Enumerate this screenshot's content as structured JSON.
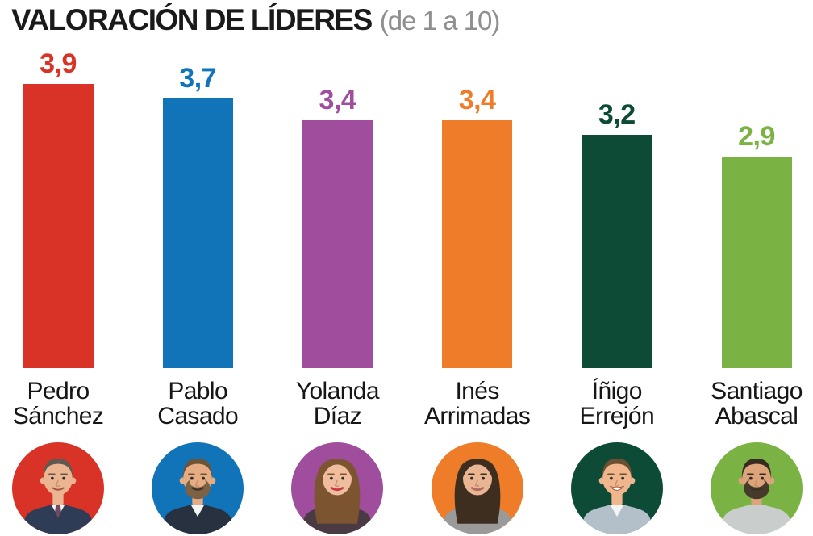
{
  "title": {
    "main": "VALORACIÓN DE LÍDERES",
    "sub": "(de 1 a 10)"
  },
  "chart_data": {
    "type": "bar",
    "title": "VALORACIÓN DE LÍDERES",
    "subtitle": "(de 1 a 10)",
    "scale": [
      1,
      10
    ],
    "grid": false,
    "legend": "none",
    "categories": [
      "Pedro Sánchez",
      "Pablo Casado",
      "Yolanda Díaz",
      "Inés Arrimadas",
      "Íñigo Errejón",
      "Santiago Abascal"
    ],
    "values": [
      3.9,
      3.7,
      3.4,
      3.4,
      3.2,
      2.9
    ],
    "value_labels": [
      "3,9",
      "3,7",
      "3,4",
      "3,4",
      "3,2",
      "2,9"
    ],
    "colors": [
      "#d93226",
      "#1173b8",
      "#9f4d9c",
      "#ee7c28",
      "#0d4b36",
      "#7ab243"
    ],
    "leaders": [
      {
        "first": "Pedro",
        "last": "Sánchez",
        "value": 3.9,
        "label": "3,9",
        "color": "#d93226",
        "portrait": {
          "bg": "#d93226",
          "skin": "#ebb592",
          "hair": "#615850",
          "style": "short",
          "beard": null,
          "clothing": "#2e3d55",
          "shirt": "#f4f4f4",
          "tie": "#6f4a63",
          "smile": "normal",
          "lips": null
        }
      },
      {
        "first": "Pablo",
        "last": "Casado",
        "value": 3.7,
        "label": "3,7",
        "color": "#1173b8",
        "portrait": {
          "bg": "#1173b8",
          "skin": "#e6ad85",
          "hair": "#6f5336",
          "style": "short",
          "beard": "#7c6144",
          "clothing": "#27313f",
          "shirt": "#f4f4f4",
          "tie": null,
          "smile": "normal",
          "lips": null
        }
      },
      {
        "first": "Yolanda",
        "last": "Díaz",
        "value": 3.4,
        "label": "3,4",
        "color": "#9f4d9c",
        "portrait": {
          "bg": "#9f4d9c",
          "skin": "#efbd9e",
          "hair": "#7c5530",
          "style": "long",
          "beard": null,
          "clothing": "#4a3a44",
          "shirt": null,
          "tie": null,
          "smile": "normal",
          "lips": "#c43a4a"
        }
      },
      {
        "first": "Inés",
        "last": "Arrimadas",
        "value": 3.4,
        "label": "3,4",
        "color": "#ee7c28",
        "portrait": {
          "bg": "#ee7c28",
          "skin": "#eab593",
          "hair": "#3e2e20",
          "style": "long",
          "beard": null,
          "clothing": "#9a9a9a",
          "shirt": null,
          "tie": null,
          "smile": "normal",
          "lips": "#b06a62"
        }
      },
      {
        "first": "Íñigo",
        "last": "Errejón",
        "value": 3.2,
        "label": "3,2",
        "color": "#0d4b36",
        "portrait": {
          "bg": "#0d4b36",
          "skin": "#f0b78e",
          "hair": "#6d4f33",
          "style": "short",
          "beard": null,
          "clothing": "#b3c0c9",
          "shirt": "#f4f4f4",
          "tie": null,
          "smile": "big",
          "lips": null
        }
      },
      {
        "first": "Santiago",
        "last": "Abascal",
        "value": 2.9,
        "label": "2,9",
        "color": "#7ab243",
        "portrait": {
          "bg": "#7ab243",
          "skin": "#dda47c",
          "hair": "#362b1f",
          "style": "short",
          "beard": "#463a2b",
          "clothing": "#c9cecd",
          "shirt": null,
          "tie": null,
          "smile": "normal",
          "lips": null
        }
      }
    ]
  }
}
